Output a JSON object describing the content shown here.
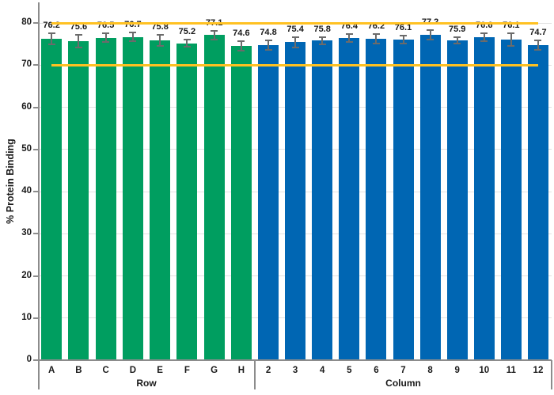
{
  "chart_data": {
    "type": "bar",
    "title": "",
    "ylabel": "% Protein Binding",
    "xlabel": "",
    "ylim": [
      0,
      80
    ],
    "yticks": [
      0,
      10,
      20,
      30,
      40,
      50,
      60,
      70,
      80
    ],
    "grid": "horizontal-major",
    "legend": "none",
    "reference_lines": {
      "values": [
        70,
        80
      ],
      "color": "#FFC122"
    },
    "groups": [
      {
        "label": "Row",
        "bar_color": "#009E60",
        "categories": [
          "A",
          "B",
          "C",
          "D",
          "E",
          "F",
          "G",
          "H"
        ],
        "values": [
          76.2,
          75.6,
          76.5,
          76.7,
          75.8,
          75.2,
          77.1,
          74.6
        ],
        "errors": [
          1.3,
          1.5,
          1.1,
          1.1,
          1.3,
          0.9,
          1.1,
          1.1
        ]
      },
      {
        "label": "Column",
        "bar_color": "#0066B3",
        "categories": [
          "2",
          "3",
          "4",
          "5",
          "6",
          "7",
          "8",
          "9",
          "10",
          "11",
          "12"
        ],
        "values": [
          74.8,
          75.4,
          75.8,
          76.4,
          76.2,
          76.1,
          77.2,
          75.9,
          76.6,
          76.1,
          74.7
        ],
        "errors": [
          1.1,
          1.3,
          0.9,
          0.9,
          1.1,
          0.9,
          1.1,
          0.8,
          0.9,
          1.5,
          1.1
        ]
      }
    ],
    "colors": {
      "grid": "#E2E2E2",
      "axis": "#8C8C8C",
      "error_bar": "#6B6B6B",
      "text": "#1A1A1A",
      "background": "#FFFFFF"
    }
  }
}
